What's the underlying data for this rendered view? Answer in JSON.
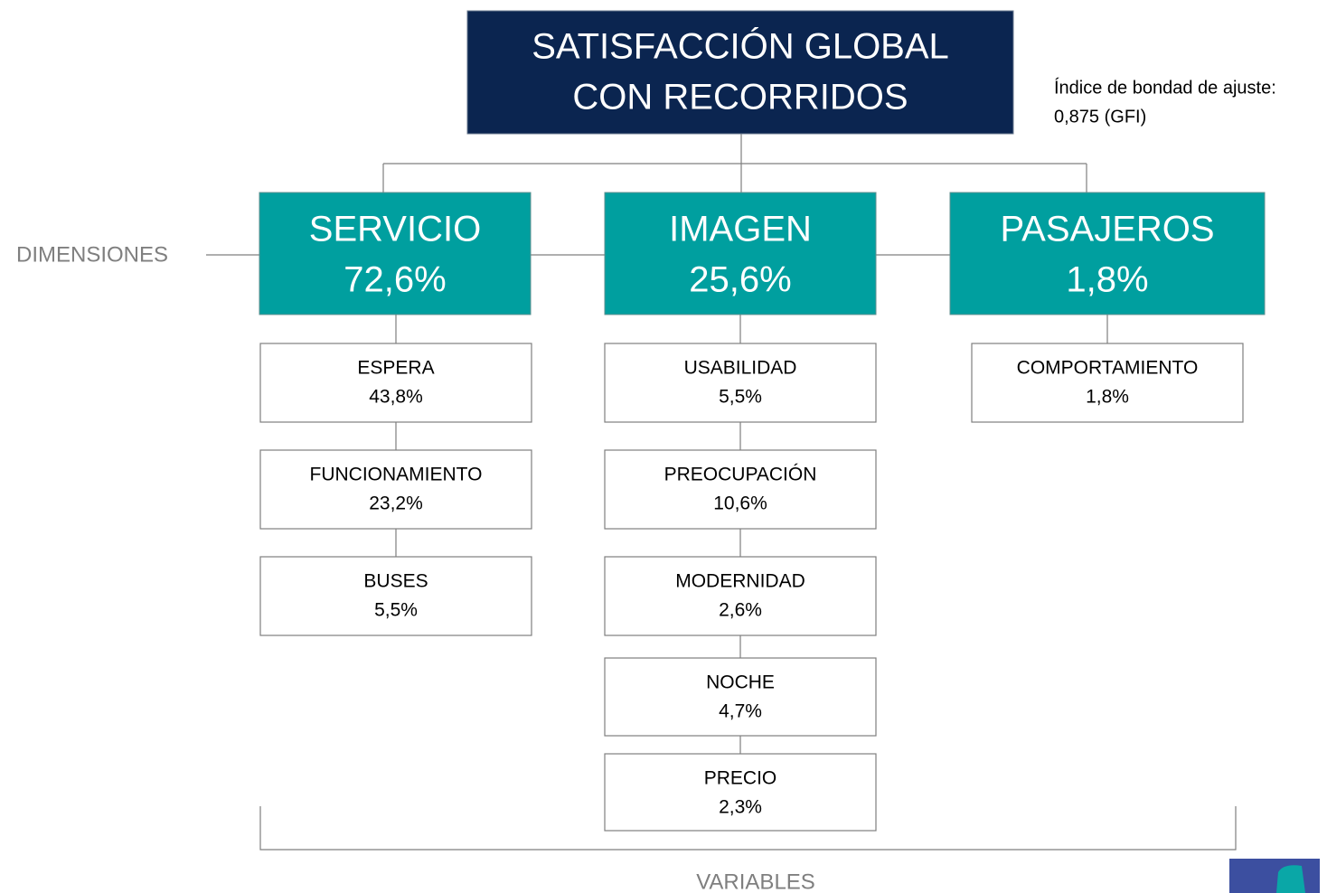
{
  "title": {
    "lines": [
      "SATISFACCIÓN GLOBAL",
      "CON RECORRIDOS"
    ]
  },
  "note": {
    "lines": [
      "Índice de bondad de ajuste:",
      "0,875 (GFI)"
    ]
  },
  "dimensions_label": "DIMENSIONES",
  "variables_label": "VARIABLES",
  "dimensions": [
    {
      "name": "SERVICIO",
      "value": "72,6%",
      "variables": [
        {
          "name": "ESPERA",
          "value": "43,8%"
        },
        {
          "name": "FUNCIONAMIENTO",
          "value": "23,2%"
        },
        {
          "name": "BUSES",
          "value": "5,5%"
        }
      ]
    },
    {
      "name": "IMAGEN",
      "value": "25,6%",
      "variables": [
        {
          "name": "USABILIDAD",
          "value": "5,5%"
        },
        {
          "name": "PREOCUPACIÓN",
          "value": "10,6%"
        },
        {
          "name": "MODERNIDAD",
          "value": "2,6%"
        },
        {
          "name": "NOCHE",
          "value": "4,7%"
        },
        {
          "name": "PRECIO",
          "value": "2,3%"
        }
      ]
    },
    {
      "name": "PASAJEROS",
      "value": "1,8%",
      "variables": [
        {
          "name": "COMPORTAMIENTO",
          "value": "1,8%"
        }
      ]
    }
  ]
}
